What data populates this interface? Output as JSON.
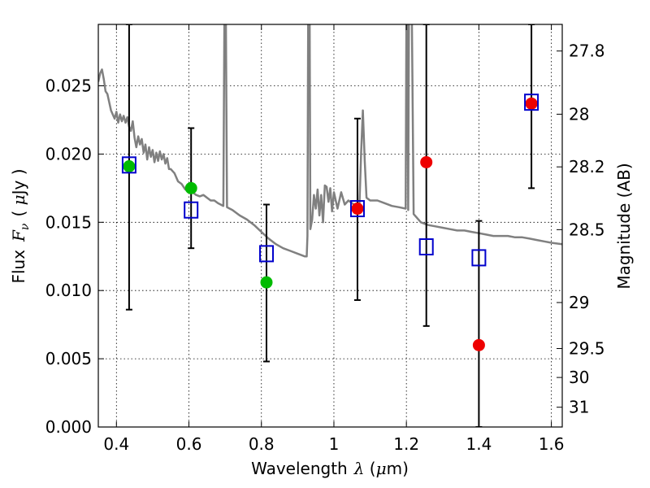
{
  "chart_data": {
    "type": "scatter",
    "title": "",
    "xlabel": {
      "prefix": "Wavelength",
      "symbol": "λ",
      "unit_open": " (",
      "unit_mu": "μ",
      "unit_rest": "m)"
    },
    "ylabel": {
      "prefix": "Flux",
      "symbol": "F",
      "subscript": "ν",
      "unit_open": "( ",
      "unit_mu": "μ",
      "unit_rest": "Jy )"
    },
    "y2label": "Magnitude (AB)",
    "xlim": [
      0.35,
      1.63
    ],
    "ylim": [
      0.0,
      0.0295
    ],
    "grid": true,
    "x_ticks": [
      {
        "v": 0.4,
        "label": "0.4"
      },
      {
        "v": 0.6,
        "label": "0.6"
      },
      {
        "v": 0.8,
        "label": "0.8"
      },
      {
        "v": 1.0,
        "label": "1"
      },
      {
        "v": 1.2,
        "label": "1.2"
      },
      {
        "v": 1.4,
        "label": "1.4"
      },
      {
        "v": 1.6,
        "label": "1.6"
      }
    ],
    "y_ticks": [
      {
        "v": 0.0,
        "label": "0.000"
      },
      {
        "v": 0.005,
        "label": "0.005"
      },
      {
        "v": 0.01,
        "label": "0.010"
      },
      {
        "v": 0.015,
        "label": "0.015"
      },
      {
        "v": 0.02,
        "label": "0.020"
      },
      {
        "v": 0.025,
        "label": "0.025"
      }
    ],
    "mag_ticks": [
      {
        "label": "27.8",
        "flux": 0.02755
      },
      {
        "label": "28",
        "flux": 0.02292
      },
      {
        "label": "28.2",
        "flux": 0.01906
      },
      {
        "label": "28.5",
        "flux": 0.01446
      },
      {
        "label": "29",
        "flux": 0.00912
      },
      {
        "label": "29.5",
        "flux": 0.00575
      },
      {
        "label": "30",
        "flux": 0.00363
      },
      {
        "label": "31",
        "flux": 0.00145
      }
    ],
    "model_color": "#808080",
    "model_spectrum": [
      [
        0.35,
        0.0253
      ],
      [
        0.355,
        0.0259
      ],
      [
        0.36,
        0.0262
      ],
      [
        0.365,
        0.0255
      ],
      [
        0.37,
        0.0246
      ],
      [
        0.375,
        0.0244
      ],
      [
        0.38,
        0.0238
      ],
      [
        0.385,
        0.0232
      ],
      [
        0.39,
        0.0229
      ],
      [
        0.395,
        0.0226
      ],
      [
        0.4,
        0.0231
      ],
      [
        0.405,
        0.0223
      ],
      [
        0.41,
        0.0229
      ],
      [
        0.415,
        0.0224
      ],
      [
        0.42,
        0.0228
      ],
      [
        0.425,
        0.0223
      ],
      [
        0.43,
        0.0227
      ],
      [
        0.435,
        0.022
      ],
      [
        0.44,
        0.0217
      ],
      [
        0.445,
        0.0224
      ],
      [
        0.45,
        0.0212
      ],
      [
        0.455,
        0.0205
      ],
      [
        0.46,
        0.0213
      ],
      [
        0.465,
        0.0207
      ],
      [
        0.47,
        0.0211
      ],
      [
        0.475,
        0.0201
      ],
      [
        0.48,
        0.0207
      ],
      [
        0.485,
        0.0196
      ],
      [
        0.49,
        0.0205
      ],
      [
        0.495,
        0.0198
      ],
      [
        0.5,
        0.0203
      ],
      [
        0.505,
        0.0194
      ],
      [
        0.51,
        0.0201
      ],
      [
        0.515,
        0.0195
      ],
      [
        0.52,
        0.0202
      ],
      [
        0.525,
        0.0196
      ],
      [
        0.53,
        0.02
      ],
      [
        0.535,
        0.0193
      ],
      [
        0.54,
        0.0197
      ],
      [
        0.545,
        0.0189
      ],
      [
        0.55,
        0.0189
      ],
      [
        0.56,
        0.0186
      ],
      [
        0.57,
        0.018
      ],
      [
        0.58,
        0.0178
      ],
      [
        0.59,
        0.0174
      ],
      [
        0.6,
        0.0175
      ],
      [
        0.61,
        0.0172
      ],
      [
        0.62,
        0.017
      ],
      [
        0.63,
        0.0169
      ],
      [
        0.64,
        0.017
      ],
      [
        0.65,
        0.0168
      ],
      [
        0.66,
        0.0166
      ],
      [
        0.67,
        0.0166
      ],
      [
        0.68,
        0.0164
      ],
      [
        0.695,
        0.0162
      ],
      [
        0.698,
        0.03
      ],
      [
        0.702,
        0.03
      ],
      [
        0.705,
        0.0161
      ],
      [
        0.72,
        0.0159
      ],
      [
        0.74,
        0.0155
      ],
      [
        0.76,
        0.0152
      ],
      [
        0.78,
        0.0148
      ],
      [
        0.8,
        0.0143
      ],
      [
        0.82,
        0.0138
      ],
      [
        0.84,
        0.0134
      ],
      [
        0.86,
        0.0131
      ],
      [
        0.88,
        0.0129
      ],
      [
        0.9,
        0.0127
      ],
      [
        0.92,
        0.0125
      ],
      [
        0.925,
        0.0125
      ],
      [
        0.927,
        0.014
      ],
      [
        0.929,
        0.03
      ],
      [
        0.933,
        0.03
      ],
      [
        0.935,
        0.0145
      ],
      [
        0.94,
        0.0152
      ],
      [
        0.945,
        0.017
      ],
      [
        0.95,
        0.016
      ],
      [
        0.955,
        0.0174
      ],
      [
        0.96,
        0.0155
      ],
      [
        0.965,
        0.017
      ],
      [
        0.97,
        0.015
      ],
      [
        0.975,
        0.0177
      ],
      [
        0.98,
        0.0176
      ],
      [
        0.985,
        0.0165
      ],
      [
        0.99,
        0.0175
      ],
      [
        0.995,
        0.0158
      ],
      [
        1.0,
        0.0172
      ],
      [
        1.01,
        0.016
      ],
      [
        1.02,
        0.0172
      ],
      [
        1.03,
        0.0163
      ],
      [
        1.04,
        0.0166
      ],
      [
        1.05,
        0.0164
      ],
      [
        1.06,
        0.0162
      ],
      [
        1.07,
        0.0159
      ],
      [
        1.075,
        0.02
      ],
      [
        1.08,
        0.0232
      ],
      [
        1.085,
        0.0195
      ],
      [
        1.09,
        0.0168
      ],
      [
        1.1,
        0.0166
      ],
      [
        1.12,
        0.0166
      ],
      [
        1.14,
        0.0164
      ],
      [
        1.16,
        0.0162
      ],
      [
        1.18,
        0.0161
      ],
      [
        1.198,
        0.016
      ],
      [
        1.2,
        0.03
      ],
      [
        1.203,
        0.03
      ],
      [
        1.205,
        0.0159
      ],
      [
        1.207,
        0.03
      ],
      [
        1.215,
        0.03
      ],
      [
        1.22,
        0.0156
      ],
      [
        1.24,
        0.015
      ],
      [
        1.26,
        0.0148
      ],
      [
        1.28,
        0.0147
      ],
      [
        1.3,
        0.0146
      ],
      [
        1.32,
        0.0145
      ],
      [
        1.34,
        0.0144
      ],
      [
        1.36,
        0.0144
      ],
      [
        1.38,
        0.0143
      ],
      [
        1.4,
        0.0142
      ],
      [
        1.42,
        0.0141
      ],
      [
        1.44,
        0.014
      ],
      [
        1.46,
        0.014
      ],
      [
        1.48,
        0.014
      ],
      [
        1.5,
        0.0139
      ],
      [
        1.52,
        0.0139
      ],
      [
        1.54,
        0.0138
      ],
      [
        1.56,
        0.0137
      ],
      [
        1.58,
        0.0136
      ],
      [
        1.6,
        0.0135
      ],
      [
        1.63,
        0.0134
      ]
    ],
    "model_photometry_color": "#0000cc",
    "model_photometry": [
      {
        "x": 0.435,
        "y": 0.0192
      },
      {
        "x": 0.606,
        "y": 0.0159
      },
      {
        "x": 0.814,
        "y": 0.0127
      },
      {
        "x": 1.065,
        "y": 0.016
      },
      {
        "x": 1.255,
        "y": 0.0132
      },
      {
        "x": 1.4,
        "y": 0.0124
      },
      {
        "x": 1.545,
        "y": 0.0238
      }
    ],
    "errorbars": [
      {
        "x": 0.435,
        "low": 0.0086,
        "high": 0.0295
      },
      {
        "x": 0.606,
        "low": 0.0131,
        "high": 0.0219
      },
      {
        "x": 0.814,
        "low": 0.0048,
        "high": 0.0163
      },
      {
        "x": 1.065,
        "low": 0.0093,
        "high": 0.0226
      },
      {
        "x": 1.255,
        "low": 0.0074,
        "high": 0.0295
      },
      {
        "x": 1.4,
        "low": 0.0,
        "high": 0.0151
      },
      {
        "x": 1.545,
        "low": 0.0175,
        "high": 0.0295
      }
    ],
    "observed_green_color": "#00bb00",
    "observed_green": [
      {
        "x": 0.435,
        "y": 0.0191
      },
      {
        "x": 0.606,
        "y": 0.0175
      },
      {
        "x": 0.814,
        "y": 0.0106
      }
    ],
    "observed_red_color": "#ee0000",
    "observed_red": [
      {
        "x": 1.065,
        "y": 0.016
      },
      {
        "x": 1.255,
        "y": 0.0194
      },
      {
        "x": 1.4,
        "y": 0.006
      },
      {
        "x": 1.545,
        "y": 0.0237
      }
    ]
  }
}
